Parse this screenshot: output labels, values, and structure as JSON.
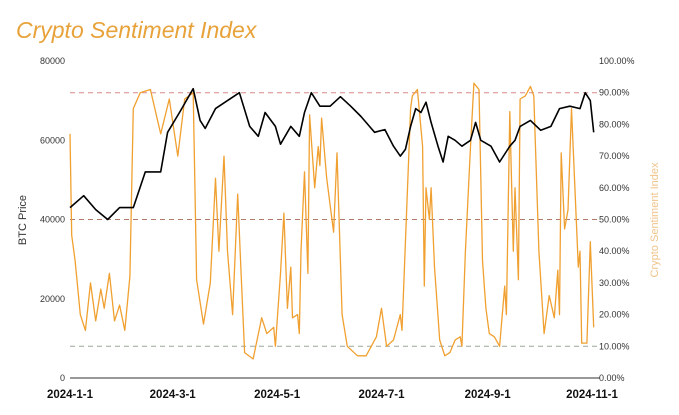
{
  "chart_data": {
    "type": "line",
    "title": "Crypto Sentiment Index",
    "xlabel": "",
    "ylabel": "BTC Price",
    "y2label": "Crypto Sentiment Index",
    "x_unit": "days since 2024-01-01",
    "xlim": [
      0,
      305
    ],
    "x_ticks": [
      {
        "day": 0,
        "label": "2024-1-1"
      },
      {
        "day": 60,
        "label": "2024-3-1"
      },
      {
        "day": 121,
        "label": "2024-5-1"
      },
      {
        "day": 182,
        "label": "2024-7-1"
      },
      {
        "day": 244,
        "label": "2024-9-1"
      },
      {
        "day": 305,
        "label": "2024-11-1"
      }
    ],
    "ylim": [
      0,
      80000
    ],
    "y_ticks": [
      "0",
      "20000",
      "40000",
      "60000",
      "80000"
    ],
    "y2lim": [
      0,
      100
    ],
    "y2_ticks": [
      "0.00%",
      "10.00%",
      "20.00%",
      "30.00%",
      "40.00%",
      "50.00%",
      "60.00%",
      "70.00%",
      "80.00%",
      "90.00%",
      "100.00%"
    ],
    "reference_lines": [
      {
        "y2": 90,
        "color": "#d98a8a"
      },
      {
        "y2": 50,
        "color": "#b07a6a"
      },
      {
        "y2": 10,
        "color": "#9aa89a"
      }
    ],
    "grid": false,
    "legend": "none",
    "series": [
      {
        "name": "BTC Price",
        "axis": "left",
        "color": "#000000",
        "x": [
          0,
          8,
          15,
          22,
          29,
          37,
          44,
          53,
          57,
          64,
          72,
          76,
          79,
          85,
          92,
          99,
          105,
          110,
          114,
          120,
          123,
          129,
          134,
          137,
          141,
          146,
          152,
          158,
          164,
          170,
          175,
          178,
          184,
          189,
          193,
          196,
          199,
          202,
          205,
          208,
          211,
          215,
          218,
          221,
          225,
          229,
          234,
          237,
          240,
          246,
          251,
          257,
          260,
          263,
          269,
          275,
          281,
          286,
          292,
          298,
          301,
          304,
          306
        ],
        "values": [
          43000,
          46000,
          42500,
          40000,
          43000,
          43000,
          52000,
          52000,
          62000,
          67000,
          73000,
          65000,
          63000,
          68000,
          70000,
          72000,
          63500,
          61000,
          67000,
          63500,
          59000,
          63500,
          61000,
          67000,
          72000,
          68600,
          68600,
          71000,
          68600,
          66000,
          63500,
          62000,
          62700,
          58500,
          56000,
          57700,
          63500,
          68000,
          67000,
          69600,
          64500,
          58500,
          54500,
          61000,
          60000,
          58500,
          60000,
          64500,
          60000,
          58500,
          54500,
          58500,
          60000,
          63500,
          65000,
          62500,
          63500,
          68000,
          68600,
          68000,
          72000,
          70000,
          62000
        ]
      },
      {
        "name": "Crypto Sentiment Index",
        "axis": "right",
        "color": "#f0a030",
        "x": [
          0,
          1,
          3,
          6,
          9,
          12,
          15,
          18,
          20,
          23,
          26,
          29,
          32,
          35,
          37,
          41,
          47,
          53,
          58,
          63,
          67,
          72,
          74,
          78,
          82,
          85,
          87,
          90,
          92,
          95,
          98,
          100,
          102,
          107,
          112,
          115,
          119,
          120,
          123,
          125,
          127,
          129,
          130,
          133,
          134,
          135,
          137,
          139,
          140,
          143,
          145,
          146,
          147,
          150,
          154,
          156,
          159,
          162,
          168,
          173,
          179,
          182,
          185,
          189,
          193,
          194,
          199,
          200,
          203,
          206,
          207,
          208,
          210,
          211,
          213,
          216,
          219,
          222,
          225,
          228,
          229,
          231,
          234,
          236,
          239,
          241,
          243,
          245,
          248,
          251,
          254,
          255,
          257,
          259,
          260,
          262,
          263,
          266,
          269,
          271,
          274,
          277,
          280,
          283,
          285,
          286,
          287,
          289,
          291,
          293,
          297,
          298,
          299,
          302,
          304,
          306
        ],
        "values": [
          77,
          45,
          37,
          20,
          15,
          30,
          18,
          28,
          22,
          33,
          18,
          23,
          15,
          32,
          85,
          90,
          91,
          77,
          88,
          70,
          88,
          90,
          31,
          17,
          30,
          63,
          40,
          70,
          40,
          20,
          58,
          33,
          8,
          6,
          19,
          14,
          16,
          10,
          33,
          52,
          22,
          35,
          19,
          20,
          14,
          40,
          65,
          33,
          83,
          60,
          73,
          67,
          82,
          63,
          46,
          71,
          20,
          10,
          7,
          7,
          13,
          22,
          10,
          12,
          20,
          15,
          85,
          89,
          91,
          73,
          29,
          60,
          50,
          60,
          35,
          12,
          7,
          8,
          12,
          13,
          10,
          40,
          73,
          93,
          91,
          37,
          22,
          14,
          13,
          10,
          29,
          20,
          84,
          40,
          60,
          31,
          88,
          89,
          92,
          89,
          40,
          14,
          26,
          19,
          34,
          20,
          71,
          47,
          53,
          85,
          35,
          40,
          11,
          11,
          43,
          16
        ]
      }
    ]
  }
}
